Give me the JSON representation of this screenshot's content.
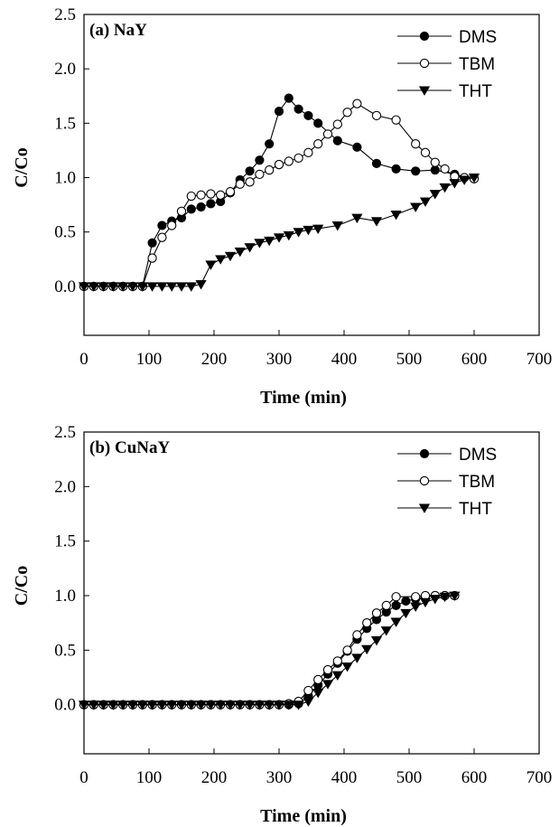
{
  "chart_data": [
    {
      "type": "line",
      "title": "(a) NaY",
      "xlabel": "Time (min)",
      "ylabel": "C/Co",
      "xlim": [
        0,
        700
      ],
      "ylim": [
        -0.45,
        2.5
      ],
      "xticks": [
        0,
        100,
        200,
        300,
        400,
        500,
        600,
        700
      ],
      "yticks": [
        0.0,
        0.5,
        1.0,
        1.5,
        2.0,
        2.5
      ],
      "ytick_labels": [
        "0.0",
        "0.5",
        "1.0",
        "1.5",
        "2.0",
        "2.5"
      ],
      "grid": false,
      "legend": "top-right",
      "series": [
        {
          "name": "DMS",
          "marker": "filled-circle",
          "x": [
            0,
            15,
            30,
            45,
            60,
            75,
            90,
            105,
            120,
            135,
            150,
            165,
            180,
            195,
            210,
            225,
            240,
            255,
            270,
            285,
            300,
            315,
            330,
            345,
            360,
            390,
            420,
            450,
            480,
            510,
            540,
            570,
            600
          ],
          "y": [
            0.0,
            0.0,
            0.0,
            0.0,
            0.0,
            0.0,
            0.0,
            0.4,
            0.56,
            0.6,
            0.63,
            0.71,
            0.73,
            0.76,
            0.78,
            0.86,
            0.98,
            1.06,
            1.16,
            1.31,
            1.61,
            1.73,
            1.63,
            1.57,
            1.5,
            1.34,
            1.28,
            1.13,
            1.08,
            1.06,
            1.07,
            1.03,
            0.99
          ]
        },
        {
          "name": "TBM",
          "marker": "open-circle",
          "x": [
            0,
            15,
            30,
            45,
            60,
            75,
            90,
            105,
            120,
            135,
            150,
            165,
            180,
            195,
            210,
            225,
            240,
            255,
            270,
            285,
            300,
            315,
            330,
            345,
            360,
            375,
            390,
            405,
            420,
            450,
            480,
            510,
            525,
            540,
            555,
            570,
            585,
            600
          ],
          "y": [
            0.0,
            0.0,
            0.0,
            0.0,
            0.0,
            0.0,
            0.0,
            0.26,
            0.45,
            0.56,
            0.69,
            0.83,
            0.84,
            0.85,
            0.84,
            0.87,
            0.94,
            0.96,
            1.03,
            1.07,
            1.12,
            1.15,
            1.18,
            1.23,
            1.31,
            1.4,
            1.49,
            1.6,
            1.68,
            1.57,
            1.53,
            1.31,
            1.23,
            1.14,
            1.08,
            1.01,
            1.0,
            0.99
          ]
        },
        {
          "name": "THT",
          "marker": "filled-triangle-down",
          "x": [
            0,
            15,
            30,
            45,
            60,
            75,
            90,
            105,
            120,
            135,
            150,
            165,
            180,
            195,
            210,
            225,
            240,
            255,
            270,
            285,
            300,
            315,
            330,
            345,
            360,
            390,
            420,
            450,
            480,
            510,
            525,
            540,
            555,
            570,
            585,
            600
          ],
          "y": [
            0.0,
            0.0,
            0.0,
            0.0,
            0.0,
            0.0,
            0.0,
            0.0,
            0.0,
            0.0,
            0.0,
            0.0,
            0.02,
            0.2,
            0.25,
            0.28,
            0.32,
            0.36,
            0.4,
            0.42,
            0.45,
            0.47,
            0.5,
            0.52,
            0.53,
            0.56,
            0.63,
            0.6,
            0.66,
            0.73,
            0.78,
            0.85,
            0.91,
            0.95,
            0.98,
            1.0
          ]
        }
      ]
    },
    {
      "type": "line",
      "title": "(b) CuNaY",
      "xlabel": "Time (min)",
      "ylabel": "C/Co",
      "xlim": [
        0,
        700
      ],
      "ylim": [
        -0.45,
        2.5
      ],
      "xticks": [
        0,
        100,
        200,
        300,
        400,
        500,
        600,
        700
      ],
      "yticks": [
        0.0,
        0.5,
        1.0,
        1.5,
        2.0,
        2.5
      ],
      "ytick_labels": [
        "0.0",
        "0.5",
        "1.0",
        "1.5",
        "2.0",
        "2.5"
      ],
      "grid": false,
      "legend": "top-right",
      "series": [
        {
          "name": "DMS",
          "marker": "filled-circle",
          "x": [
            0,
            15,
            30,
            45,
            60,
            75,
            90,
            105,
            120,
            135,
            150,
            165,
            180,
            195,
            210,
            225,
            240,
            255,
            270,
            285,
            300,
            315,
            330,
            345,
            360,
            375,
            390,
            405,
            420,
            435,
            450,
            465,
            480,
            495,
            510,
            525,
            540,
            555,
            570
          ],
          "y": [
            0.0,
            0.0,
            0.0,
            0.0,
            0.0,
            0.0,
            0.0,
            0.0,
            0.0,
            0.0,
            0.0,
            0.0,
            0.0,
            0.0,
            0.0,
            0.0,
            0.0,
            0.0,
            0.0,
            0.0,
            0.0,
            0.0,
            0.01,
            0.08,
            0.18,
            0.28,
            0.38,
            0.49,
            0.6,
            0.7,
            0.78,
            0.85,
            0.91,
            0.95,
            0.97,
            0.99,
            1.0,
            1.0,
            1.0
          ]
        },
        {
          "name": "TBM",
          "marker": "open-circle",
          "x": [
            0,
            15,
            30,
            45,
            60,
            75,
            90,
            105,
            120,
            135,
            150,
            165,
            180,
            195,
            210,
            225,
            240,
            255,
            270,
            285,
            300,
            315,
            330,
            345,
            360,
            375,
            390,
            405,
            420,
            435,
            450,
            465,
            480,
            510,
            525,
            540,
            555,
            570
          ],
          "y": [
            0.0,
            0.0,
            0.0,
            0.0,
            0.0,
            0.0,
            0.0,
            0.0,
            0.0,
            0.0,
            0.0,
            0.0,
            0.0,
            0.0,
            0.0,
            0.0,
            0.0,
            0.0,
            0.0,
            0.0,
            0.0,
            0.01,
            0.03,
            0.13,
            0.23,
            0.32,
            0.4,
            0.5,
            0.64,
            0.75,
            0.84,
            0.91,
            0.99,
            0.99,
            1.0,
            1.0,
            1.0,
            1.0
          ]
        },
        {
          "name": "THT",
          "marker": "filled-triangle-down",
          "x": [
            0,
            15,
            30,
            45,
            60,
            75,
            90,
            105,
            120,
            135,
            150,
            165,
            180,
            195,
            210,
            225,
            240,
            255,
            270,
            285,
            300,
            315,
            330,
            345,
            360,
            375,
            390,
            405,
            420,
            435,
            450,
            465,
            480,
            495,
            510,
            525,
            540,
            555,
            570
          ],
          "y": [
            0.0,
            0.0,
            0.0,
            0.0,
            0.0,
            0.0,
            0.0,
            0.0,
            0.0,
            0.0,
            0.0,
            0.0,
            0.0,
            0.0,
            0.0,
            0.0,
            0.0,
            0.0,
            0.0,
            0.0,
            0.0,
            0.0,
            0.0,
            0.03,
            0.11,
            0.19,
            0.27,
            0.35,
            0.43,
            0.51,
            0.59,
            0.68,
            0.76,
            0.84,
            0.9,
            0.94,
            0.97,
            0.99,
            1.0
          ]
        }
      ]
    }
  ]
}
